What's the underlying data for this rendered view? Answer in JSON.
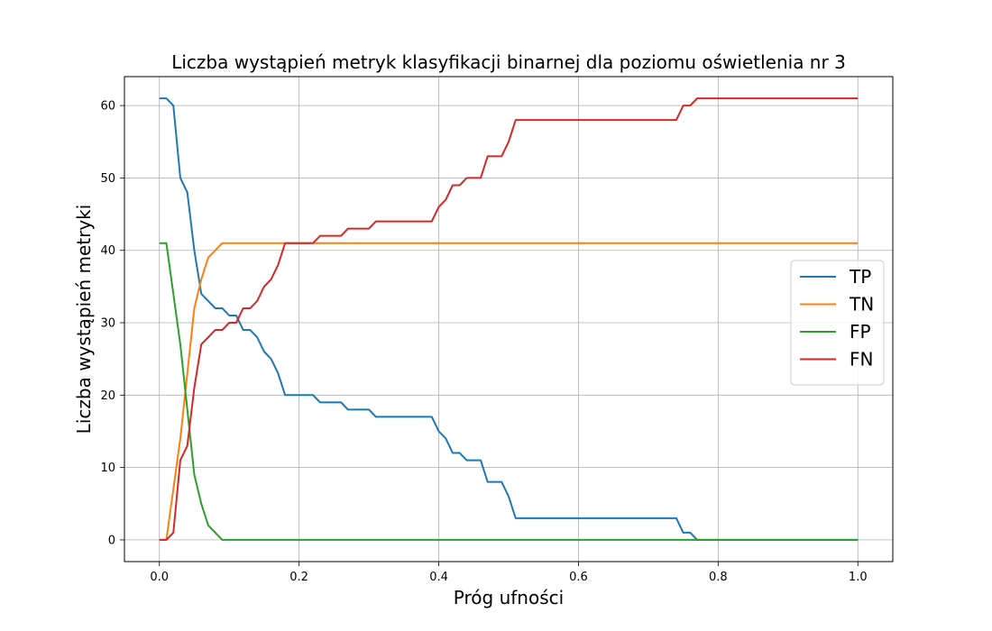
{
  "chart_data": {
    "type": "line",
    "title": "Liczba wystąpień metryk klasyfikacji binarnej dla poziomu oświetlenia nr 3",
    "xlabel": "Próg ufności",
    "ylabel": "Liczba wystąpień metryki",
    "xlim": [
      -0.05,
      1.05
    ],
    "ylim": [
      -3,
      64
    ],
    "xticks": [
      0.0,
      0.2,
      0.4,
      0.6,
      0.8,
      1.0
    ],
    "xtick_labels": [
      "0.0",
      "0.2",
      "0.4",
      "0.6",
      "0.8",
      "1.0"
    ],
    "yticks": [
      0,
      10,
      20,
      30,
      40,
      50,
      60
    ],
    "ytick_labels": [
      "0",
      "10",
      "20",
      "30",
      "40",
      "50",
      "60"
    ],
    "grid": true,
    "legend_position": "center-right",
    "series": [
      {
        "name": "TP",
        "color": "#1f77b4",
        "points": [
          [
            0,
            61
          ],
          [
            0.01,
            61
          ],
          [
            0.02,
            60
          ],
          [
            0.03,
            50
          ],
          [
            0.04,
            48
          ],
          [
            0.05,
            40
          ],
          [
            0.06,
            34
          ],
          [
            0.07,
            33
          ],
          [
            0.08,
            32
          ],
          [
            0.09,
            32
          ],
          [
            0.1,
            31
          ],
          [
            0.11,
            31
          ],
          [
            0.12,
            29
          ],
          [
            0.13,
            29
          ],
          [
            0.14,
            28
          ],
          [
            0.15,
            26
          ],
          [
            0.16,
            25
          ],
          [
            0.17,
            23
          ],
          [
            0.18,
            20
          ],
          [
            0.22,
            20
          ],
          [
            0.23,
            19
          ],
          [
            0.26,
            19
          ],
          [
            0.27,
            18
          ],
          [
            0.3,
            18
          ],
          [
            0.31,
            17
          ],
          [
            0.39,
            17
          ],
          [
            0.4,
            15
          ],
          [
            0.41,
            14
          ],
          [
            0.42,
            12
          ],
          [
            0.43,
            12
          ],
          [
            0.44,
            11
          ],
          [
            0.46,
            11
          ],
          [
            0.47,
            8
          ],
          [
            0.49,
            8
          ],
          [
            0.5,
            6
          ],
          [
            0.51,
            3
          ],
          [
            0.74,
            3
          ],
          [
            0.75,
            1
          ],
          [
            0.76,
            1
          ],
          [
            0.77,
            0
          ],
          [
            1.0,
            0
          ]
        ]
      },
      {
        "name": "TN",
        "color": "#ff7f0e",
        "points": [
          [
            0,
            0
          ],
          [
            0.01,
            0
          ],
          [
            0.02,
            7
          ],
          [
            0.03,
            14
          ],
          [
            0.04,
            23
          ],
          [
            0.05,
            32
          ],
          [
            0.06,
            36
          ],
          [
            0.07,
            39
          ],
          [
            0.08,
            40
          ],
          [
            0.09,
            41
          ],
          [
            1.0,
            41
          ]
        ]
      },
      {
        "name": "FP",
        "color": "#2ca02c",
        "points": [
          [
            0,
            41
          ],
          [
            0.01,
            41
          ],
          [
            0.02,
            34
          ],
          [
            0.03,
            27
          ],
          [
            0.04,
            18
          ],
          [
            0.05,
            9
          ],
          [
            0.06,
            5
          ],
          [
            0.07,
            2
          ],
          [
            0.08,
            1
          ],
          [
            0.09,
            0
          ],
          [
            1.0,
            0
          ]
        ]
      },
      {
        "name": "FN",
        "color": "#d62728",
        "points": [
          [
            0,
            0
          ],
          [
            0.01,
            0
          ],
          [
            0.02,
            1
          ],
          [
            0.03,
            11
          ],
          [
            0.04,
            13
          ],
          [
            0.05,
            21
          ],
          [
            0.06,
            27
          ],
          [
            0.07,
            28
          ],
          [
            0.08,
            29
          ],
          [
            0.09,
            29
          ],
          [
            0.1,
            30
          ],
          [
            0.11,
            30
          ],
          [
            0.12,
            32
          ],
          [
            0.13,
            32
          ],
          [
            0.14,
            33
          ],
          [
            0.15,
            35
          ],
          [
            0.16,
            36
          ],
          [
            0.17,
            38
          ],
          [
            0.18,
            41
          ],
          [
            0.22,
            41
          ],
          [
            0.23,
            42
          ],
          [
            0.26,
            42
          ],
          [
            0.27,
            43
          ],
          [
            0.3,
            43
          ],
          [
            0.31,
            44
          ],
          [
            0.39,
            44
          ],
          [
            0.4,
            46
          ],
          [
            0.41,
            47
          ],
          [
            0.42,
            49
          ],
          [
            0.43,
            49
          ],
          [
            0.44,
            50
          ],
          [
            0.46,
            50
          ],
          [
            0.47,
            53
          ],
          [
            0.49,
            53
          ],
          [
            0.5,
            55
          ],
          [
            0.51,
            58
          ],
          [
            0.74,
            58
          ],
          [
            0.75,
            60
          ],
          [
            0.76,
            60
          ],
          [
            0.77,
            61
          ],
          [
            1.0,
            61
          ]
        ]
      }
    ]
  }
}
